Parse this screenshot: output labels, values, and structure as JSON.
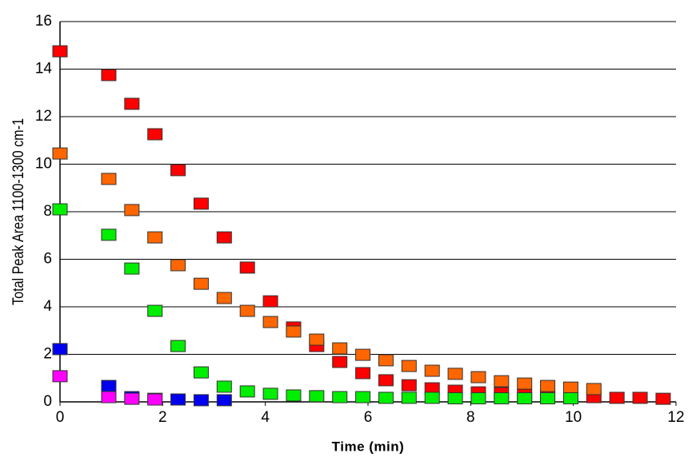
{
  "chart_data": {
    "type": "scatter",
    "x_label": "Time (min)",
    "y_label": "Total Peak Area 1100-1300 cm-1",
    "x": [
      0,
      0.95,
      1.4,
      1.85,
      2.3,
      2.75,
      3.2,
      3.65,
      4.1,
      4.55,
      5.0,
      5.45,
      5.9,
      6.35,
      6.8,
      7.25,
      7.7,
      8.15,
      8.6,
      9.05,
      9.5,
      9.95,
      10.4,
      10.85,
      11.3,
      11.75
    ],
    "series": [
      {
        "color": "#ff0000",
        "values": [
          14.75,
          13.75,
          12.54,
          11.26,
          9.75,
          8.34,
          6.92,
          5.65,
          4.23,
          3.13,
          2.35,
          1.68,
          1.21,
          0.91,
          0.7,
          0.57,
          0.47,
          0.4,
          0.37,
          0.3,
          0.27,
          0.24,
          0.2,
          0.17,
          0.17,
          0.13
        ]
      },
      {
        "color": "#ff6600",
        "values": [
          10.45,
          9.38,
          8.07,
          6.92,
          5.75,
          4.97,
          4.37,
          3.83,
          3.36,
          2.96,
          2.62,
          2.25,
          1.98,
          1.75,
          1.51,
          1.31,
          1.18,
          1.04,
          0.87,
          0.77,
          0.67,
          0.6,
          0.54,
          null,
          null,
          null
        ]
      },
      {
        "color": "#00ee00",
        "values": [
          8.1,
          7.03,
          5.61,
          3.83,
          2.35,
          1.24,
          0.64,
          0.44,
          0.34,
          0.27,
          0.24,
          0.2,
          0.2,
          0.17,
          0.17,
          0.17,
          0.15,
          0.15,
          0.15,
          0.15,
          0.15,
          0.15,
          null,
          null,
          null,
          null
        ]
      },
      {
        "color": "#0000ee",
        "values": [
          2.22,
          0.67,
          0.2,
          0.13,
          0.1,
          0.07,
          0.07,
          null,
          null,
          null,
          null,
          null,
          null,
          null,
          null,
          null,
          null,
          null,
          null,
          null,
          null,
          null,
          null,
          null,
          null,
          null
        ]
      },
      {
        "color": "#ff00ff",
        "values": [
          1.08,
          0.2,
          0.13,
          0.1,
          null,
          null,
          null,
          null,
          null,
          null,
          null,
          null,
          null,
          null,
          null,
          null,
          null,
          null,
          null,
          null,
          null,
          null,
          null,
          null,
          null,
          null
        ]
      }
    ],
    "xlim": [
      0,
      12
    ],
    "xticks": [
      0,
      2,
      4,
      6,
      8,
      10,
      12
    ],
    "ylim": [
      0,
      16
    ],
    "yticks": [
      0,
      2,
      4,
      6,
      8,
      10,
      12,
      14,
      16
    ],
    "grid": true
  }
}
